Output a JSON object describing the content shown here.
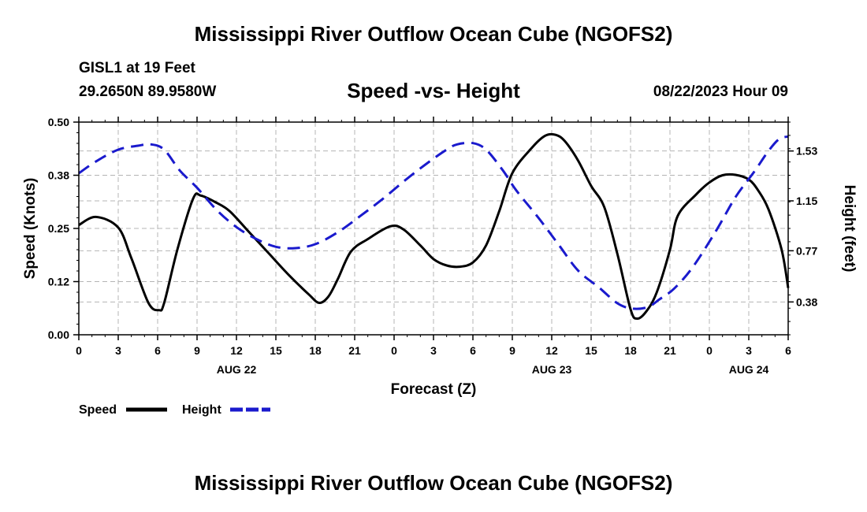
{
  "header": {
    "title": "Mississippi River Outflow Ocean Cube (NGOFS2)",
    "station": "GISL1 at 19 Feet",
    "coords": "29.2650N  89.9580W",
    "subtitle": "Speed -vs- Height",
    "datetime": "08/22/2023 Hour 09"
  },
  "footer": {
    "title": "Mississippi River Outflow Ocean Cube (NGOFS2)"
  },
  "chart_data": {
    "type": "line",
    "title": "Speed -vs- Height",
    "xlabel": "Forecast (Z)",
    "ylabel": "Speed (Knots)",
    "y2label": "Height (feet)",
    "xlim": [
      0,
      54
    ],
    "ylim": [
      0,
      0.5
    ],
    "y2lim": [
      0.13,
      1.75
    ],
    "x_ticks": [
      0,
      3,
      6,
      9,
      12,
      15,
      18,
      21,
      24,
      27,
      30,
      33,
      36,
      39,
      42,
      45,
      48,
      51,
      54
    ],
    "x_tick_labels": [
      "0",
      "3",
      "6",
      "9",
      "12",
      "15",
      "18",
      "21",
      "0",
      "3",
      "6",
      "9",
      "12",
      "15",
      "18",
      "21",
      "0",
      "3",
      "6"
    ],
    "day_labels": [
      {
        "x": 12,
        "label": "AUG 22"
      },
      {
        "x": 36,
        "label": "AUG 23"
      },
      {
        "x": 51,
        "label": "AUG 24"
      }
    ],
    "y_ticks": [
      0.0,
      0.125,
      0.25,
      0.375,
      0.5
    ],
    "y_tick_labels": [
      "0.00",
      "0.12",
      "0.25",
      "0.38",
      "0.50"
    ],
    "y2_ticks": [
      0.38,
      0.77,
      1.15,
      1.53
    ],
    "y2_tick_labels": [
      "0.38",
      "0.77",
      "1.15",
      "1.53"
    ],
    "grid": true,
    "legend": "bottom-left",
    "series": [
      {
        "name": "Speed",
        "axis": "left",
        "color": "#000000",
        "dash": "solid",
        "points": [
          [
            0,
            0.258
          ],
          [
            1.3,
            0.277
          ],
          [
            3,
            0.252
          ],
          [
            4,
            0.18
          ],
          [
            5.3,
            0.075
          ],
          [
            6.1,
            0.058
          ],
          [
            6.5,
            0.075
          ],
          [
            7.5,
            0.2
          ],
          [
            8.7,
            0.32
          ],
          [
            9.3,
            0.327
          ],
          [
            10.5,
            0.31
          ],
          [
            11.5,
            0.29
          ],
          [
            13,
            0.24
          ],
          [
            14.5,
            0.19
          ],
          [
            16,
            0.14
          ],
          [
            17.5,
            0.095
          ],
          [
            18.3,
            0.075
          ],
          [
            19,
            0.09
          ],
          [
            19.7,
            0.13
          ],
          [
            20.7,
            0.195
          ],
          [
            22,
            0.225
          ],
          [
            23.7,
            0.255
          ],
          [
            24.7,
            0.248
          ],
          [
            26,
            0.21
          ],
          [
            27,
            0.178
          ],
          [
            28,
            0.163
          ],
          [
            29,
            0.16
          ],
          [
            30,
            0.17
          ],
          [
            31,
            0.21
          ],
          [
            32,
            0.29
          ],
          [
            33,
            0.38
          ],
          [
            34.5,
            0.44
          ],
          [
            35.5,
            0.468
          ],
          [
            36.3,
            0.47
          ],
          [
            37,
            0.455
          ],
          [
            38,
            0.41
          ],
          [
            39,
            0.35
          ],
          [
            40,
            0.3
          ],
          [
            41,
            0.19
          ],
          [
            42,
            0.06
          ],
          [
            42.5,
            0.038
          ],
          [
            43.2,
            0.055
          ],
          [
            44,
            0.1
          ],
          [
            45,
            0.2
          ],
          [
            45.6,
            0.28
          ],
          [
            47,
            0.33
          ],
          [
            48,
            0.358
          ],
          [
            49,
            0.375
          ],
          [
            50,
            0.376
          ],
          [
            51,
            0.365
          ],
          [
            51.7,
            0.34
          ],
          [
            52.5,
            0.295
          ],
          [
            53.5,
            0.2
          ],
          [
            54,
            0.11
          ]
        ]
      },
      {
        "name": "Height",
        "axis": "right",
        "color": "#1a1acd",
        "dash": "dashed",
        "points": [
          [
            0,
            1.36
          ],
          [
            1.3,
            1.45
          ],
          [
            3,
            1.54
          ],
          [
            4.5,
            1.57
          ],
          [
            5.5,
            1.58
          ],
          [
            6.5,
            1.54
          ],
          [
            7.7,
            1.38
          ],
          [
            9,
            1.25
          ],
          [
            10.5,
            1.08
          ],
          [
            12,
            0.95
          ],
          [
            13.5,
            0.86
          ],
          [
            15,
            0.8
          ],
          [
            16.5,
            0.79
          ],
          [
            18,
            0.82
          ],
          [
            19.7,
            0.91
          ],
          [
            21.5,
            1.04
          ],
          [
            23.2,
            1.17
          ],
          [
            25,
            1.32
          ],
          [
            26.7,
            1.45
          ],
          [
            28,
            1.54
          ],
          [
            28.8,
            1.58
          ],
          [
            30,
            1.59
          ],
          [
            31,
            1.54
          ],
          [
            32.3,
            1.38
          ],
          [
            33.3,
            1.23
          ],
          [
            35,
            1.02
          ],
          [
            36.5,
            0.82
          ],
          [
            38,
            0.62
          ],
          [
            39.6,
            0.49
          ],
          [
            41,
            0.37
          ],
          [
            42.1,
            0.33
          ],
          [
            43.3,
            0.34
          ],
          [
            44.2,
            0.4
          ],
          [
            45.3,
            0.48
          ],
          [
            46.7,
            0.64
          ],
          [
            48.5,
            0.92
          ],
          [
            50,
            1.18
          ],
          [
            51.4,
            1.37
          ],
          [
            52.5,
            1.53
          ],
          [
            53.3,
            1.62
          ],
          [
            54,
            1.64
          ]
        ]
      }
    ]
  }
}
